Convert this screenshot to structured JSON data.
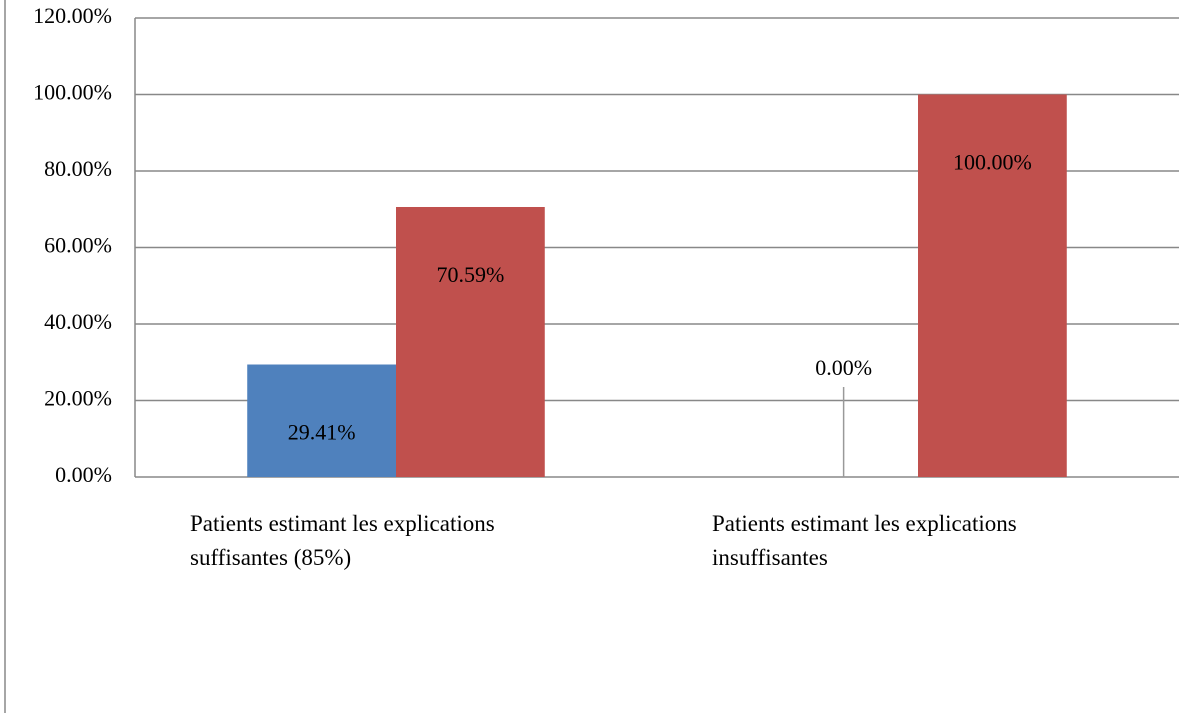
{
  "chart_data": {
    "type": "bar",
    "categories": [
      "Patients estimant les explications suffisantes (85%)",
      "Patients estimant les explications insuffisantes"
    ],
    "series": [
      {
        "color": "#4f81bd",
        "values": [
          29.41,
          0
        ],
        "value_labels": [
          "29.41%",
          "0.00%"
        ]
      },
      {
        "color": "#c0504d",
        "values": [
          70.59,
          100
        ],
        "value_labels": [
          "70.59%",
          "100.00%"
        ]
      }
    ],
    "ylim": [
      0,
      120
    ],
    "yticks": [
      {
        "value": 0,
        "label": "0.00%"
      },
      {
        "value": 20,
        "label": "20.00%"
      },
      {
        "value": 40,
        "label": "40.00%"
      },
      {
        "value": 60,
        "label": "60.00%"
      },
      {
        "value": 80,
        "label": "80.00%"
      },
      {
        "value": 100,
        "label": "100.00%"
      },
      {
        "value": 120,
        "label": "120.00%"
      }
    ],
    "grid": true
  }
}
